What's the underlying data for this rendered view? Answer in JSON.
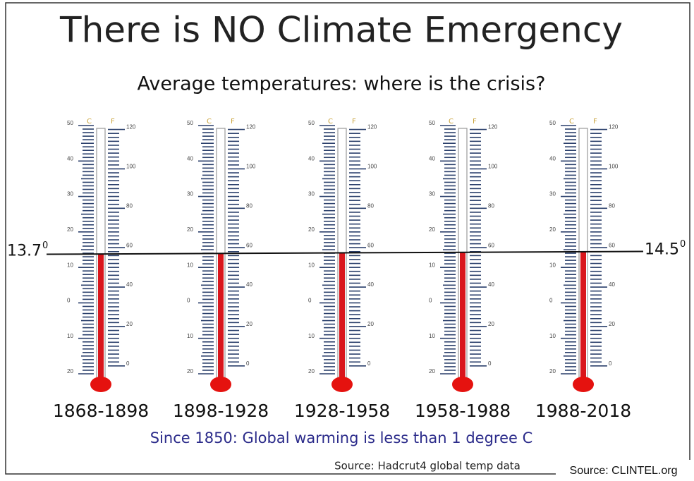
{
  "title": "There is NO Climate Emergency",
  "subtitle": "Average temperatures: where is the crisis?",
  "left_level": {
    "value": 13.7,
    "superscript": "0"
  },
  "right_level": {
    "value": 14.5,
    "superscript": "0"
  },
  "c_unit": "C",
  "f_unit": "F",
  "c_labels": [
    "50",
    "40",
    "30",
    "20",
    "10",
    "0",
    "10",
    "20"
  ],
  "f_labels": [
    "120",
    "100",
    "80",
    "60",
    "40",
    "20",
    "0"
  ],
  "thermometers": [
    {
      "period": "1868-1898",
      "level": 13.7
    },
    {
      "period": "1898-1928",
      "level": 13.8
    },
    {
      "period": "1928-1958",
      "level": 14.0
    },
    {
      "period": "1958-1988",
      "level": 14.2
    },
    {
      "period": "1988-2018",
      "level": 14.5
    }
  ],
  "footnote": "Since 1850: Global warming is less than 1 degree C",
  "source": "Source: Hadcrut4 global temp data",
  "credit": "Source: CLINTEL.org"
}
